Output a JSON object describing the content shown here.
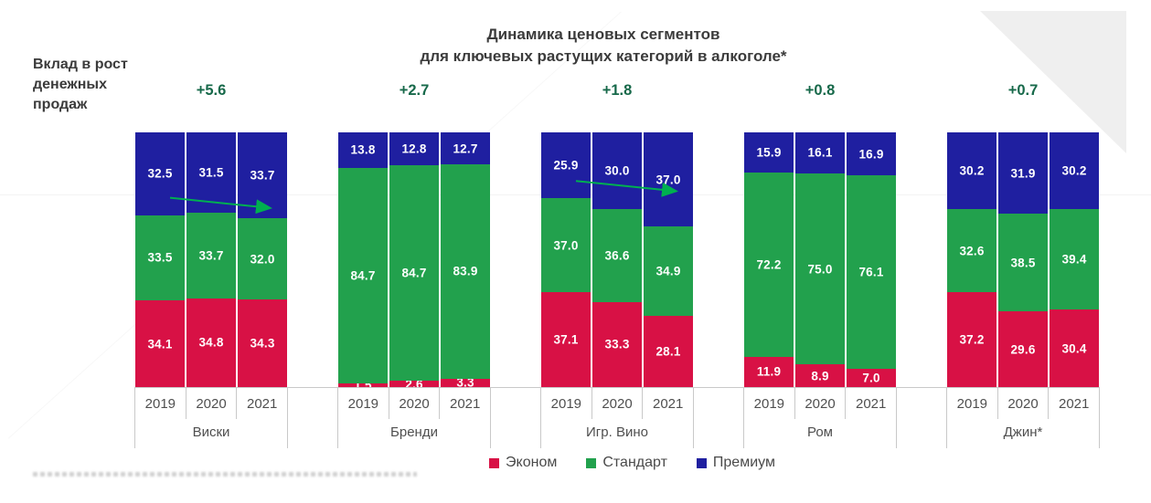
{
  "title": [
    "Динамика ценовых сегментов",
    "для ключевых растущих категорий в алкоголе*"
  ],
  "left_note": "Вклад в рост денежных продаж",
  "legend": [
    {
      "label": "Эконом",
      "color": "#d81145"
    },
    {
      "label": "Стандарт",
      "color": "#22a14d"
    },
    {
      "label": "Премиум",
      "color": "#1f1fa0"
    }
  ],
  "chart_data": {
    "type": "bar",
    "variant": "100%-stacked-columns",
    "unit": "% share",
    "years": [
      "2019",
      "2020",
      "2021"
    ],
    "series_order_bottom_to_top": [
      "Эконом",
      "Стандарт",
      "Премиум"
    ],
    "colors": {
      "Эконом": "#d81145",
      "Стандарт": "#22a14d",
      "Премиум": "#1f1fa0"
    },
    "groups": [
      {
        "category": "Виски",
        "contribution": "+5.6",
        "values": {
          "Эконом": [
            34.1,
            34.8,
            34.3
          ],
          "Стандарт": [
            33.5,
            33.7,
            32.0
          ],
          "Премиум": [
            32.5,
            31.5,
            33.7
          ]
        }
      },
      {
        "category": "Бренди",
        "contribution": "+2.7",
        "values": {
          "Эконом": [
            1.5,
            2.6,
            3.3
          ],
          "Стандарт": [
            84.7,
            84.7,
            83.9
          ],
          "Премиум": [
            13.8,
            12.8,
            12.7
          ]
        }
      },
      {
        "category": "Игр. Вино",
        "contribution": "+1.8",
        "values": {
          "Эконом": [
            37.1,
            33.3,
            28.1
          ],
          "Стандарт": [
            37.0,
            36.6,
            34.9
          ],
          "Премиум": [
            25.9,
            30.0,
            37.0
          ]
        }
      },
      {
        "category": "Ром",
        "contribution": "+0.8",
        "values": {
          "Эконом": [
            11.9,
            8.9,
            7.0
          ],
          "Стандарт": [
            72.2,
            75.0,
            76.1
          ],
          "Премиум": [
            15.9,
            16.1,
            16.9
          ]
        }
      },
      {
        "category": "Джин*",
        "contribution": "+0.7",
        "values": {
          "Эконом": [
            37.2,
            29.6,
            30.4
          ],
          "Стандарт": [
            32.6,
            38.5,
            39.4
          ],
          "Премиум": [
            30.2,
            31.9,
            30.2
          ]
        }
      }
    ],
    "annotations": {
      "premium_trend_arrows": [
        "Виски",
        "Игр. Вино"
      ],
      "arrow_color": "#00b050",
      "contribution_row_label": "Вклад в рост денежных продаж"
    }
  }
}
